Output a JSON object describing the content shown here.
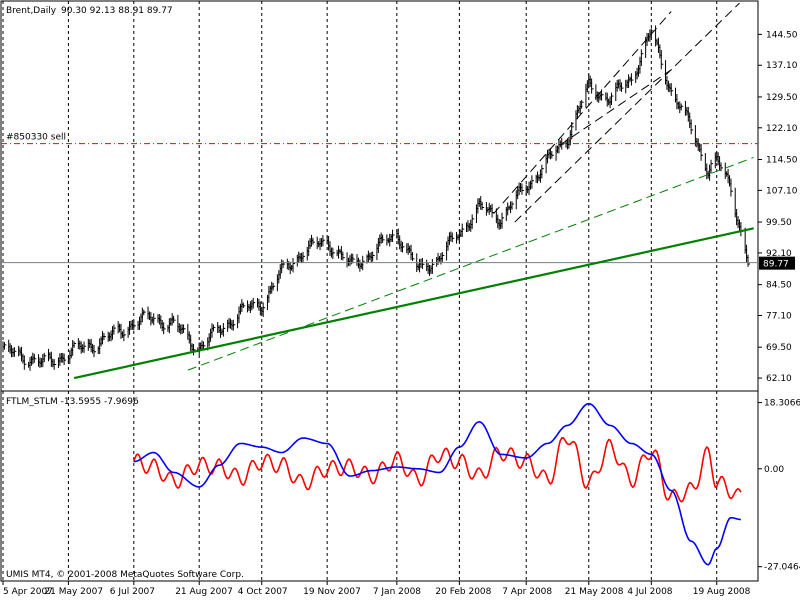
{
  "window": {
    "symbol_header": "Brent,Daily",
    "ohlc_header": "90.30 92.13 88.91 89.77",
    "copyright": "UMIS MT4, © 2001-2008 MetaQuotes Software Corp."
  },
  "colors": {
    "background": "#ffffff",
    "frame": "#000000",
    "grid": "#000000",
    "bars": "#000000",
    "main_trendline": "#008000",
    "second_trendline": "#008000",
    "channel_lines": "#000000",
    "order_line": "#ff0000",
    "bid_line": "#708090",
    "price_box": "#000000",
    "ftlm": "#0000ff",
    "stlm": "#ff0000"
  },
  "icons": {
    "none": ""
  },
  "chart_data": [
    {
      "type": "candlestick",
      "title": "Brent,Daily",
      "last_price_label": "89.77",
      "grid": "vertical-dotted",
      "ylim": [
        59.0,
        152.5
      ],
      "y_ticks": [
        "144.50",
        "137.10",
        "129.50",
        "122.10",
        "114.50",
        "107.10",
        "99.50",
        "92.10",
        "84.50",
        "77.10",
        "69.50",
        "62.10"
      ],
      "x_ticks": [
        "5 Apr 2007",
        "21 May 2007",
        "6 Jul 2007",
        "21 Aug 2007",
        "4 Oct 2007",
        "19 Nov 2007",
        "7 Jan 2008",
        "20 Feb 2008",
        "7 Apr 2008",
        "21 May 2008",
        "4 Jul 2008",
        "19 Aug 2008"
      ],
      "series_close": [
        [
          "5 Apr 2007",
          68.5
        ],
        [
          "19 Apr 2007",
          67.5
        ],
        [
          "3 May 2007",
          65.5
        ],
        [
          "21 May 2007",
          68.0
        ],
        [
          "5 Jun 2007",
          70.0
        ],
        [
          "20 Jun 2007",
          72.0
        ],
        [
          "6 Jul 2007",
          75.5
        ],
        [
          "20 Jul 2007",
          76.5
        ],
        [
          "3 Aug 2007",
          75.0
        ],
        [
          "13 Aug 2007",
          71.5
        ],
        [
          "21 Aug 2007",
          69.5
        ],
        [
          "4 Sep 2007",
          73.5
        ],
        [
          "19 Sep 2007",
          78.0
        ],
        [
          "4 Oct 2007",
          80.0
        ],
        [
          "18 Oct 2007",
          87.5
        ],
        [
          "2 Nov 2007",
          92.5
        ],
        [
          "19 Nov 2007",
          95.0
        ],
        [
          "5 Dec 2007",
          89.0
        ],
        [
          "20 Dec 2007",
          92.0
        ],
        [
          "7 Jan 2008",
          97.0
        ],
        [
          "22 Jan 2008",
          88.0
        ],
        [
          "6 Feb 2008",
          91.0
        ],
        [
          "20 Feb 2008",
          97.0
        ],
        [
          "5 Mar 2008",
          103.0
        ],
        [
          "20 Mar 2008",
          100.5
        ],
        [
          "7 Apr 2008",
          108.0
        ],
        [
          "22 Apr 2008",
          114.0
        ],
        [
          "6 May 2008",
          120.0
        ],
        [
          "21 May 2008",
          132.0
        ],
        [
          "5 Jun 2008",
          129.0
        ],
        [
          "20 Jun 2008",
          134.0
        ],
        [
          "4 Jul 2008",
          145.0
        ],
        [
          "18 Jul 2008",
          131.0
        ],
        [
          "1 Aug 2008",
          122.0
        ],
        [
          "13 Aug 2008",
          112.0
        ],
        [
          "19 Aug 2008",
          114.0
        ],
        [
          "29 Aug 2008",
          108.0
        ],
        [
          "5 Sep 2008",
          97.0
        ],
        [
          "10 Sep 2008",
          89.77
        ]
      ],
      "objects": {
        "order_line": {
          "label": "#850330 sell",
          "price": 118.3,
          "style": "dash-dot"
        },
        "bid_line": {
          "price": 89.77
        }
      }
    },
    {
      "type": "line",
      "title": "FTLM_STLM -13.5955 -7.9696",
      "ylim": [
        -31.0,
        21.5
      ],
      "y_ticks": [
        "18.3066",
        "0.00",
        "-27.0464"
      ],
      "series": [
        {
          "name": "FTLM",
          "color": "#0000ff",
          "values": [
            [
              "6 Jul 2007",
              2.0
            ],
            [
              "20 Jul 2007",
              4.5
            ],
            [
              "3 Aug 2007",
              -1.0
            ],
            [
              "21 Aug 2007",
              -5.0
            ],
            [
              "4 Sep 2007",
              1.0
            ],
            [
              "19 Sep 2007",
              7.0
            ],
            [
              "4 Oct 2007",
              6.0
            ],
            [
              "18 Oct 2007",
              4.5
            ],
            [
              "2 Nov 2007",
              8.5
            ],
            [
              "19 Nov 2007",
              7.0
            ],
            [
              "5 Dec 2007",
              -2.0
            ],
            [
              "20 Dec 2007",
              -0.5
            ],
            [
              "7 Jan 2008",
              0.5
            ],
            [
              "22 Jan 2008",
              0.0
            ],
            [
              "6 Feb 2008",
              -1.0
            ],
            [
              "20 Feb 2008",
              6.0
            ],
            [
              "5 Mar 2008",
              13.0
            ],
            [
              "20 Mar 2008",
              4.0
            ],
            [
              "7 Apr 2008",
              3.0
            ],
            [
              "22 Apr 2008",
              7.0
            ],
            [
              "6 May 2008",
              12.0
            ],
            [
              "21 May 2008",
              18.0
            ],
            [
              "5 Jun 2008",
              12.0
            ],
            [
              "20 Jun 2008",
              7.0
            ],
            [
              "4 Jul 2008",
              4.0
            ],
            [
              "18 Jul 2008",
              -6.0
            ],
            [
              "1 Aug 2008",
              -20.0
            ],
            [
              "13 Aug 2008",
              -26.5
            ],
            [
              "19 Aug 2008",
              -22.0
            ],
            [
              "29 Aug 2008",
              -13.5
            ],
            [
              "5 Sep 2008",
              -14.0
            ]
          ]
        },
        {
          "name": "STLM",
          "color": "#ff0000",
          "values": [
            [
              "6 Jul 2007",
              2.0
            ],
            [
              "20 Jul 2007",
              0.5
            ],
            [
              "3 Aug 2007",
              -3.5
            ],
            [
              "21 Aug 2007",
              1.0
            ],
            [
              "4 Sep 2007",
              0.5
            ],
            [
              "19 Sep 2007",
              -2.5
            ],
            [
              "4 Oct 2007",
              2.0
            ],
            [
              "18 Oct 2007",
              1.0
            ],
            [
              "2 Nov 2007",
              -4.0
            ],
            [
              "19 Nov 2007",
              0.0
            ],
            [
              "5 Dec 2007",
              0.5
            ],
            [
              "20 Dec 2007",
              -2.0
            ],
            [
              "7 Jan 2008",
              2.5
            ],
            [
              "22 Jan 2008",
              -3.0
            ],
            [
              "6 Feb 2008",
              4.0
            ],
            [
              "20 Feb 2008",
              2.0
            ],
            [
              "5 Mar 2008",
              -2.0
            ],
            [
              "20 Mar 2008",
              4.5
            ],
            [
              "7 Apr 2008",
              2.0
            ],
            [
              "22 Apr 2008",
              -3.0
            ],
            [
              "6 May 2008",
              9.0
            ],
            [
              "21 May 2008",
              -4.0
            ],
            [
              "5 Jun 2008",
              6.0
            ],
            [
              "20 Jun 2008",
              -3.0
            ],
            [
              "4 Jul 2008",
              5.0
            ],
            [
              "18 Jul 2008",
              -8.0
            ],
            [
              "1 Aug 2008",
              -6.0
            ],
            [
              "13 Aug 2008",
              4.0
            ],
            [
              "19 Aug 2008",
              -3.5
            ],
            [
              "29 Aug 2008",
              -6.0
            ],
            [
              "5 Sep 2008",
              -8.0
            ]
          ]
        }
      ]
    }
  ]
}
